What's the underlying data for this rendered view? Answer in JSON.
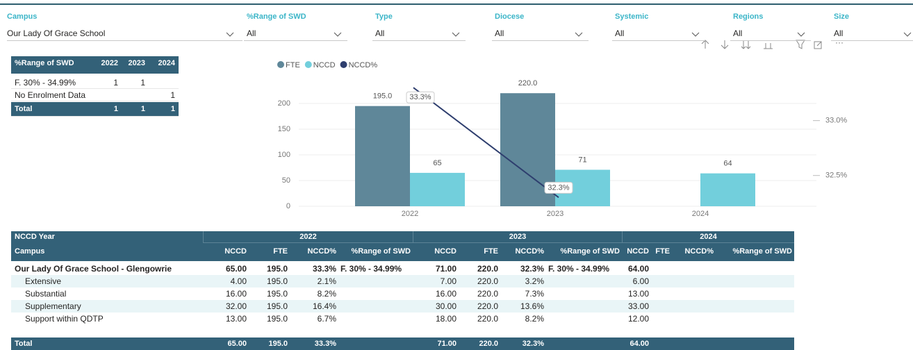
{
  "filters": [
    {
      "label": "Campus",
      "value": "Our Lady Of Grace School"
    },
    {
      "label": "%Range of SWD",
      "value": "All"
    },
    {
      "label": "Type",
      "value": "All"
    },
    {
      "label": "Diocese",
      "value": "All"
    },
    {
      "label": "Systemic",
      "value": "All"
    },
    {
      "label": "Regions",
      "value": "All"
    },
    {
      "label": "Size",
      "value": "All"
    }
  ],
  "summary_table": {
    "header": [
      "%Range of SWD",
      "2022",
      "2023",
      "2024"
    ],
    "rows": [
      {
        "label": "F. 30% - 34.99%",
        "cells": [
          "1",
          "1",
          null
        ]
      },
      {
        "label": "No Enrolment Data",
        "cells": [
          null,
          null,
          "1"
        ]
      }
    ],
    "total": {
      "label": "Total",
      "cells": [
        "1",
        "1",
        "1"
      ]
    }
  },
  "chart_data": {
    "type": "bar",
    "categories": [
      "2022",
      "2023",
      "2024"
    ],
    "series": [
      {
        "name": "FTE",
        "color": "#5f8799",
        "values": [
          195,
          220,
          null
        ],
        "value_labels": [
          "195.0",
          "220.0",
          null
        ]
      },
      {
        "name": "NCCD",
        "color": "#72cfdc",
        "values": [
          65,
          71,
          64
        ]
      },
      {
        "name": "NCCD%",
        "color": "#2e3e6e",
        "type": "line",
        "axis": "y2",
        "values": [
          33.3,
          32.3,
          null
        ],
        "value_labels": [
          "33.3%",
          "32.3%",
          null
        ]
      }
    ],
    "ylim": [
      0,
      250
    ],
    "yticks": [
      0,
      50,
      100,
      150,
      200
    ],
    "y2lim": [
      32.22,
      33.39
    ],
    "y2ticks": [
      {
        "value": 32.5,
        "label": "32.5%"
      },
      {
        "value": 33,
        "label": "33.0%"
      }
    ],
    "grid": true,
    "legend": "top-left"
  },
  "main_table": {
    "corner_group": "NCCD Year",
    "groups": [
      "2022",
      "2023",
      "2024"
    ],
    "corner": "Campus",
    "subcolumns": [
      "NCCD",
      "FTE",
      "NCCD%",
      "%Range of SWD"
    ],
    "rows": [
      {
        "label": "Our Lady Of Grace School - Glengowrie",
        "cells": [
          "65.00",
          "195.0",
          "33.3%",
          "F. 30% - 34.99%",
          "71.00",
          "220.0",
          "32.3%",
          "F. 30% - 34.99%",
          "64.00",
          null,
          null,
          null
        ]
      },
      {
        "label": "Extensive",
        "cells": [
          "4.00",
          "195.0",
          "2.1%",
          null,
          "7.00",
          "220.0",
          "3.2%",
          null,
          "6.00",
          null,
          null,
          null
        ]
      },
      {
        "label": "Substantial",
        "cells": [
          "16.00",
          "195.0",
          "8.2%",
          null,
          "16.00",
          "220.0",
          "7.3%",
          null,
          "13.00",
          null,
          null,
          null
        ]
      },
      {
        "label": "Supplementary",
        "cells": [
          "32.00",
          "195.0",
          "16.4%",
          null,
          "30.00",
          "220.0",
          "13.6%",
          null,
          "33.00",
          null,
          null,
          null
        ]
      },
      {
        "label": "Support within QDTP",
        "cells": [
          "13.00",
          "195.0",
          "6.7%",
          null,
          "18.00",
          "220.0",
          "8.2%",
          null,
          "12.00",
          null,
          null,
          null
        ]
      }
    ],
    "total": {
      "label": "Total",
      "cells": [
        "65.00",
        "195.0",
        "33.3%",
        null,
        "71.00",
        "220.0",
        "32.3%",
        null,
        "64.00",
        null,
        null,
        null
      ]
    }
  }
}
